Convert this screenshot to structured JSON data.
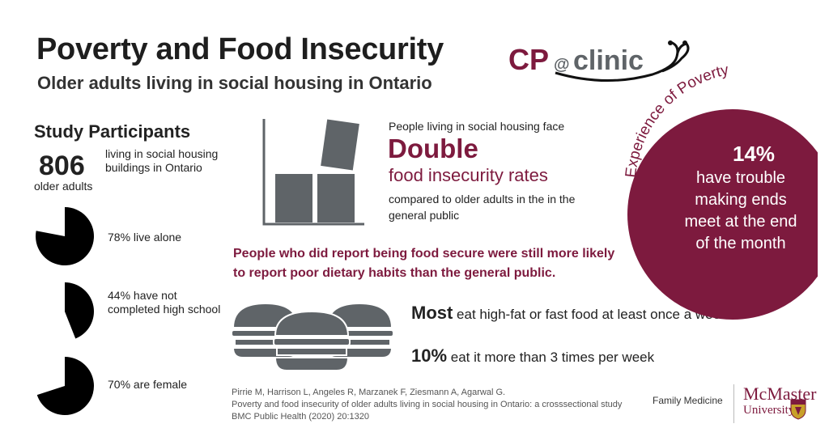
{
  "header": {
    "title": "Poverty and Food Insecurity",
    "subtitle": "Older adults living in social housing in Ontario",
    "logo_text": "CP@clinic"
  },
  "participants": {
    "title": "Study Participants",
    "count": "806",
    "count_label": "older adults",
    "description": "living in social housing buildings in Ontario",
    "stats": [
      {
        "percent": 78,
        "label": "78% live alone"
      },
      {
        "percent": 44,
        "label": "44% have not completed high school"
      },
      {
        "percent": 70,
        "label": "70% are female"
      }
    ]
  },
  "double": {
    "pre": "People living in social housing face",
    "big": "Double",
    "sub": "food insecurity rates",
    "post": "compared to older adults in the in the general public"
  },
  "secure_note": "People who did report being food secure were still more likely to report poor dietary habits than the general public.",
  "fastfood": {
    "most_bold": "Most",
    "most_rest": " eat high-fat or fast food at least once a week",
    "ten_bold": "10%",
    "ten_rest": " eat it more than 3 times per week"
  },
  "poverty": {
    "heading": "Experience of Poverty",
    "percent": "14%",
    "text": "have trouble making ends meet at the end of  the month"
  },
  "citation": {
    "authors": "Pirrie M, Harrison L, Angeles R, Marzanek F,  Ziesmann A, Agarwal G.",
    "title": "Poverty and food insecurity of older adults living in social housing in Ontario: a crosssectional study",
    "journal": "BMC Public Health (2020) 20:1320"
  },
  "footer": {
    "department": "Family Medicine",
    "university_line1": "McMaster",
    "university_line2": "University"
  },
  "colors": {
    "maroon": "#7d1a3e",
    "gray": "#5f6468",
    "black": "#000000"
  }
}
